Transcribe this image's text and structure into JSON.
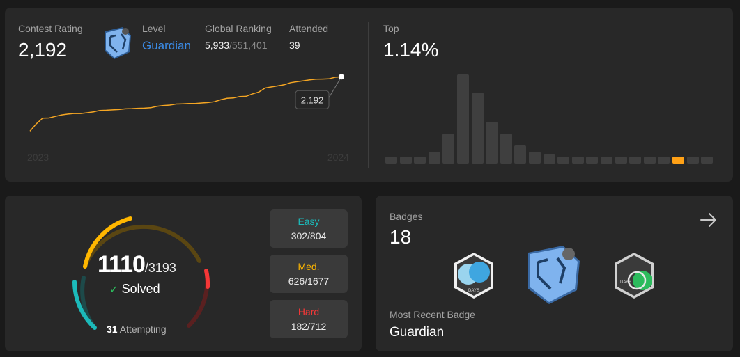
{
  "rating": {
    "contest_rating_label": "Contest Rating",
    "contest_rating": "2,192",
    "level_label": "Level",
    "level": "Guardian",
    "global_ranking_label": "Global Ranking",
    "global_rank": "5,933",
    "global_total": "/551,401",
    "attended_label": "Attended",
    "attended": "39",
    "chart_start_label": "2023",
    "chart_end_label": "2024",
    "tooltip": "2,192",
    "top_label": "Top",
    "top_value": "1.14%",
    "colors": {
      "line": "#f5a623",
      "accent": "#ffa116",
      "level": "#3b8be6"
    }
  },
  "chart_data": [
    {
      "type": "line",
      "x_labels": [
        "2023",
        "2024"
      ],
      "values": [
        1716,
        1780,
        1830,
        1831,
        1845,
        1858,
        1865,
        1871,
        1870,
        1877,
        1885,
        1897,
        1899,
        1902,
        1905,
        1911,
        1913,
        1916,
        1917,
        1921,
        1933,
        1940,
        1944,
        1953,
        1955,
        1958,
        1958,
        1962,
        1966,
        1973,
        1990,
        2003,
        2006,
        2019,
        2021,
        2042,
        2058,
        2093,
        2103,
        2112,
        2122,
        2140,
        2149,
        2157,
        2165,
        2171,
        2172,
        2174,
        2188,
        2192
      ],
      "highlight": {
        "index": 49,
        "value": "2,192"
      }
    },
    {
      "type": "bar",
      "title": "Top",
      "values": [
        1,
        1,
        1,
        2,
        5,
        15,
        12,
        7,
        5,
        3,
        2,
        1.5,
        1,
        1,
        1,
        1,
        1,
        1,
        1,
        1,
        1,
        1,
        1
      ],
      "highlight_index": 20
    }
  ],
  "problems": {
    "solved": "1110",
    "total": "/3193",
    "solved_label": "Solved",
    "attempting_count": "31",
    "attempting_label": "Attempting",
    "easy_label": "Easy",
    "easy_value": "302/804",
    "medium_label": "Med.",
    "medium_value": "626/1677",
    "hard_label": "Hard",
    "hard_value": "182/712",
    "colors": {
      "easy": "#1cbaba",
      "medium": "#ffb700",
      "hard": "#f63737"
    }
  },
  "badges": {
    "label": "Badges",
    "count": "18",
    "recent_label": "Most Recent Badge",
    "recent_name": "Guardian",
    "badge_days_text": "DAYS"
  }
}
